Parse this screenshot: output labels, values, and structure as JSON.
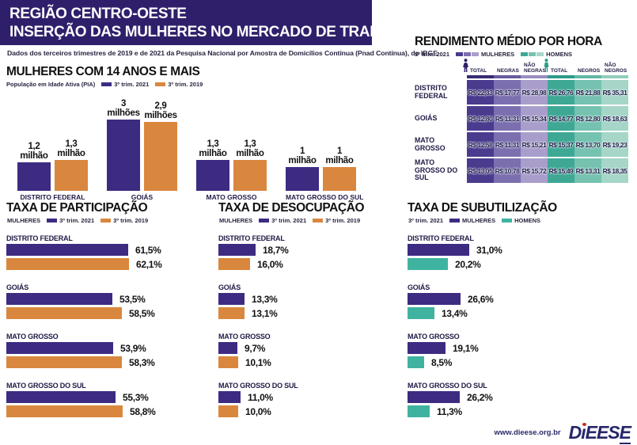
{
  "header": {
    "title_line1": "REGIÃO CENTRO-OESTE",
    "title_line2": "INSERÇÃO DAS MULHERES NO MERCADO DE TRABALHO",
    "source": "Dados dos terceiros trimestres de 2019 e de 2021 da Pesquisa Nacional por Amostra de Domicílios Contínua (Pnad Contínua), do IBGE"
  },
  "colors": {
    "header_bg": "#2f1f6b",
    "purple": "#3d2b82",
    "orange": "#d9873e",
    "teal": "#3fb3a0",
    "navy_text": "#1e1a45",
    "woman_icon": "#2f1f6b",
    "man_icon": "#2e9b89",
    "table_cols": [
      "#4a3b8e",
      "#7c6fb0",
      "#a99ecb",
      "#3ea895",
      "#76c2b1",
      "#a5d6c8"
    ],
    "table_strip": [
      "#392a71",
      "#685aa0",
      "#9a8dc1",
      "#2e9b89",
      "#61b7a4",
      "#92cdbc"
    ],
    "logo_navy": "#27276b",
    "logo_red": "#cc2a2a"
  },
  "chart_data": [
    {
      "id": "population",
      "type": "bar",
      "orientation": "vertical",
      "title": "MULHERES COM 14 ANOS E MAIS",
      "subtitle": "População em Idade Ativa (PIA)",
      "legend": [
        "3º trim. 2021",
        "3º trim. 2019"
      ],
      "legend_position": "top",
      "categories": [
        "DISTRITO FEDERAL",
        "GOIÁS",
        "MATO GROSSO",
        "MATO GROSSO DO SUL"
      ],
      "value_unit": "milhões de mulheres",
      "ylim": [
        0,
        3
      ],
      "series": [
        {
          "name": "3º trim. 2021",
          "values": [
            1.2,
            3,
            1.3,
            1
          ],
          "labels": [
            {
              "num": "1,2",
              "unit": "milhão"
            },
            {
              "num": "3",
              "unit": "milhões"
            },
            {
              "num": "1,3",
              "unit": "milhão"
            },
            {
              "num": "1",
              "unit": "milhão"
            }
          ]
        },
        {
          "name": "3º trim. 2019",
          "values": [
            1.3,
            2.9,
            1.3,
            1
          ],
          "labels": [
            {
              "num": "1,3",
              "unit": "milhão"
            },
            {
              "num": "2,9",
              "unit": "milhões"
            },
            {
              "num": "1,3",
              "unit": "milhão"
            },
            {
              "num": "1",
              "unit": "milhão"
            }
          ]
        }
      ]
    },
    {
      "id": "income",
      "type": "table",
      "title": "RENDIMENTO MÉDIO POR HORA",
      "period": "3º trim. 2021",
      "group_labels": [
        "MULHERES",
        "HOMENS"
      ],
      "columns": [
        "TOTAL",
        "NEGRAS",
        "NÃO NEGRAS",
        "TOTAL",
        "NEGROS",
        "NÃO NEGROS"
      ],
      "rows": [
        {
          "state": "DISTRITO FEDERAL",
          "values": [
            "R$ 22,33",
            "R$ 17,77",
            "R$ 28,98",
            "R$ 26,76",
            "R$ 21,88",
            "R$ 35,31"
          ]
        },
        {
          "state": "GOIÁS",
          "values": [
            "R$ 12,80",
            "R$ 11,31",
            "R$ 15,34",
            "R$ 14,77",
            "R$ 12,80",
            "R$ 18,63"
          ]
        },
        {
          "state": "MATO GROSSO",
          "values": [
            "R$ 12,58",
            "R$ 11,31",
            "R$ 15,21",
            "R$ 15,37",
            "R$ 13,70",
            "R$ 19,23"
          ]
        },
        {
          "state": "MATO GROSSO DO SUL",
          "values": [
            "R$ 13,05",
            "R$ 10,78",
            "R$ 15,72",
            "R$ 15,49",
            "R$ 13,31",
            "R$ 18,35"
          ]
        }
      ]
    },
    {
      "id": "participation",
      "type": "bar",
      "orientation": "horizontal",
      "title": "TAXA DE PARTICIPAÇÃO",
      "legend_prefix": "MULHERES",
      "legend": [
        "3º trim. 2021",
        "3º trim. 2019"
      ],
      "categories": [
        "DISTRITO FEDERAL",
        "GOIÁS",
        "MATO GROSSO",
        "MATO GROSSO DO SUL"
      ],
      "xlim": [
        0,
        100
      ],
      "series": [
        {
          "name": "3º trim. 2021",
          "values": [
            61.5,
            53.5,
            53.9,
            55.3
          ],
          "labels": [
            "61,5%",
            "53,5%",
            "53,9%",
            "55,3%"
          ]
        },
        {
          "name": "3º trim. 2019",
          "values": [
            62.1,
            58.5,
            58.3,
            58.8
          ],
          "labels": [
            "62,1%",
            "58,5%",
            "58,3%",
            "58,8%"
          ]
        }
      ]
    },
    {
      "id": "unemployment",
      "type": "bar",
      "orientation": "horizontal",
      "title": "TAXA DE DESOCUPAÇÃO",
      "legend_prefix": "MULHERES",
      "legend": [
        "3º trim. 2021",
        "3º trim. 2019"
      ],
      "categories": [
        "DISTRITO FEDERAL",
        "GOIÁS",
        "MATO GROSSO",
        "MATO GROSSO DO SUL"
      ],
      "xlim": [
        0,
        100
      ],
      "series": [
        {
          "name": "3º trim. 2021",
          "values": [
            18.7,
            13.3,
            9.7,
            11.0
          ],
          "labels": [
            "18,7%",
            "13,3%",
            "9,7%",
            "11,0%"
          ]
        },
        {
          "name": "3º trim. 2019",
          "values": [
            16.0,
            13.1,
            10.1,
            10.0
          ],
          "labels": [
            "16,0%",
            "13,1%",
            "10,1%",
            "10,0%"
          ]
        }
      ]
    },
    {
      "id": "underutilization",
      "type": "bar",
      "orientation": "horizontal",
      "title": "TAXA DE SUBUTILIZAÇÃO",
      "period": "3º trim. 2021",
      "legend": [
        "MULHERES",
        "HOMENS"
      ],
      "categories": [
        "DISTRITO FEDERAL",
        "GOIÁS",
        "MATO GROSSO",
        "MATO GROSSO DO SUL"
      ],
      "xlim": [
        0,
        100
      ],
      "series": [
        {
          "name": "MULHERES",
          "values": [
            31.0,
            26.6,
            19.1,
            26.2
          ],
          "labels": [
            "31,0%",
            "26,6%",
            "19,1%",
            "26,2%"
          ]
        },
        {
          "name": "HOMENS",
          "values": [
            20.2,
            13.4,
            8.5,
            11.3
          ],
          "labels": [
            "20,2%",
            "13,4%",
            "8,5%",
            "11,3%"
          ]
        }
      ]
    }
  ],
  "footer": {
    "url": "www.dieese.org.br",
    "logo": "DiEESE",
    "logo_d": "D",
    "logo_i": "ı",
    "logo_mid": "EES",
    "logo_last": "E"
  }
}
